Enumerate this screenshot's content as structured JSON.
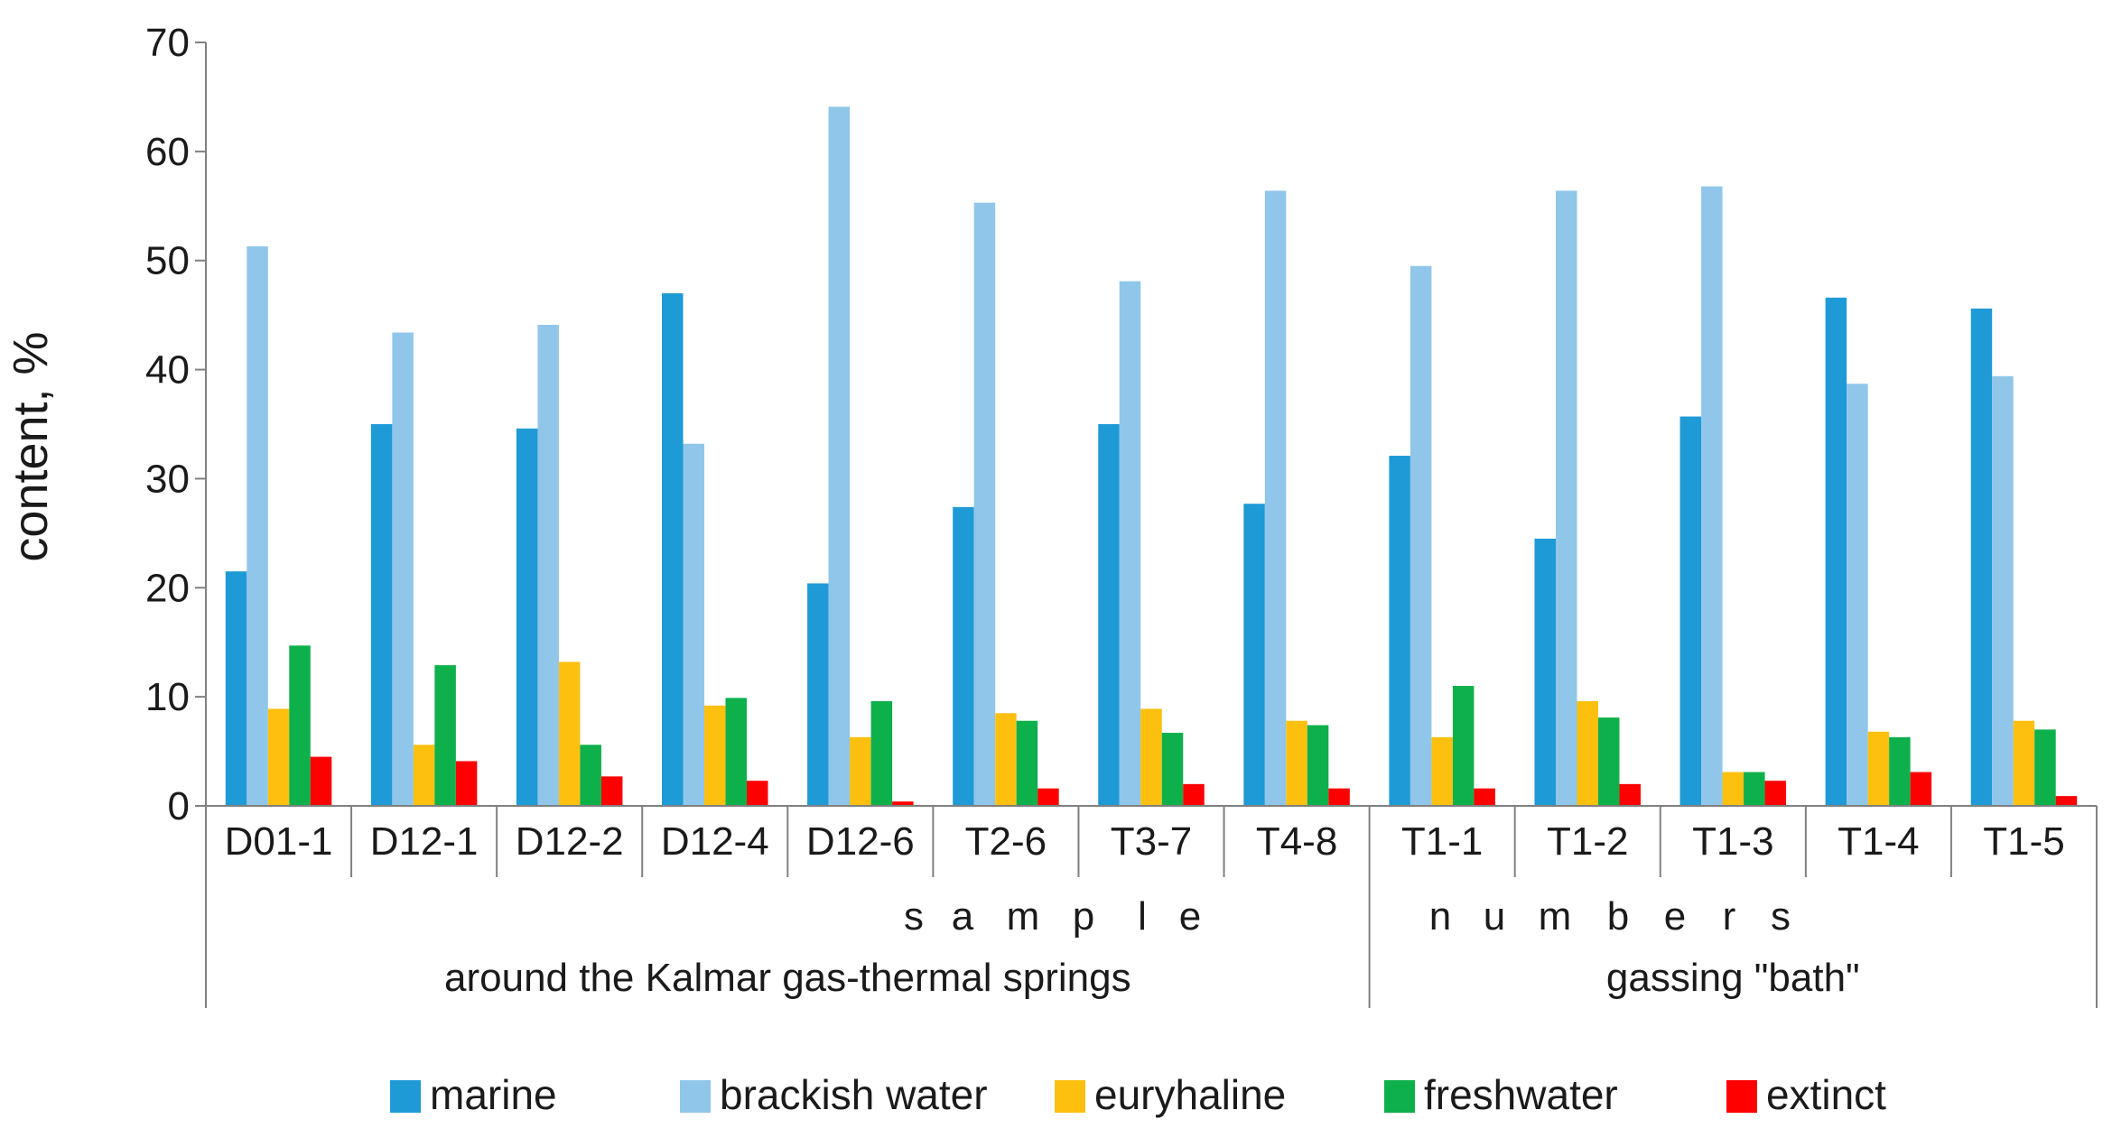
{
  "chart_data": {
    "type": "bar",
    "title": "",
    "xlabel": "sample numbers",
    "xlabel_letters": [
      "s",
      "a",
      "m",
      "p",
      "l",
      "e",
      "n",
      "u",
      "m",
      "b",
      "e",
      "r",
      "s"
    ],
    "ylabel": "content, %",
    "ylim": [
      0,
      70
    ],
    "yticks": [
      0,
      10,
      20,
      30,
      40,
      50,
      60,
      70
    ],
    "grid": false,
    "legend_position": "bottom",
    "categories": [
      "D01-1",
      "D12-1",
      "D12-2",
      "D12-4",
      "D12-6",
      "T2-6",
      "T3-7",
      "T4-8",
      "T1-1",
      "T1-2",
      "T1-3",
      "T1-4",
      "T1-5"
    ],
    "groups": [
      {
        "label": "around the Kalmar gas-thermal springs",
        "count": 8
      },
      {
        "label": "gassing \"bath\"",
        "count": 5
      }
    ],
    "series": [
      {
        "name": "marine",
        "color": "#1E9AD6",
        "values": [
          21.5,
          35,
          34.6,
          47,
          20.4,
          27.4,
          35,
          27.7,
          32.1,
          24.5,
          35.7,
          46.6,
          45.6
        ]
      },
      {
        "name": "brackish water",
        "color": "#8FC6EA",
        "values": [
          51.3,
          43.4,
          44.1,
          33.2,
          64.1,
          55.3,
          48.1,
          56.4,
          49.5,
          56.4,
          56.8,
          38.7,
          39.4
        ]
      },
      {
        "name": "euryhaline",
        "color": "#FDC00F",
        "values": [
          8.9,
          5.6,
          13.2,
          9.2,
          6.3,
          8.5,
          8.9,
          7.8,
          6.3,
          9.6,
          3.1,
          6.8,
          7.8
        ]
      },
      {
        "name": "freshwater",
        "color": "#0EB04B",
        "values": [
          14.7,
          12.9,
          5.6,
          9.9,
          9.6,
          7.8,
          6.7,
          7.4,
          11.0,
          8.1,
          3.1,
          6.3,
          7.0
        ]
      },
      {
        "name": "extinct",
        "color": "#FF0000",
        "values": [
          4.5,
          4.1,
          2.7,
          2.3,
          0.4,
          1.6,
          2.0,
          1.6,
          1.6,
          2.0,
          2.3,
          3.1,
          0.9
        ]
      }
    ]
  }
}
